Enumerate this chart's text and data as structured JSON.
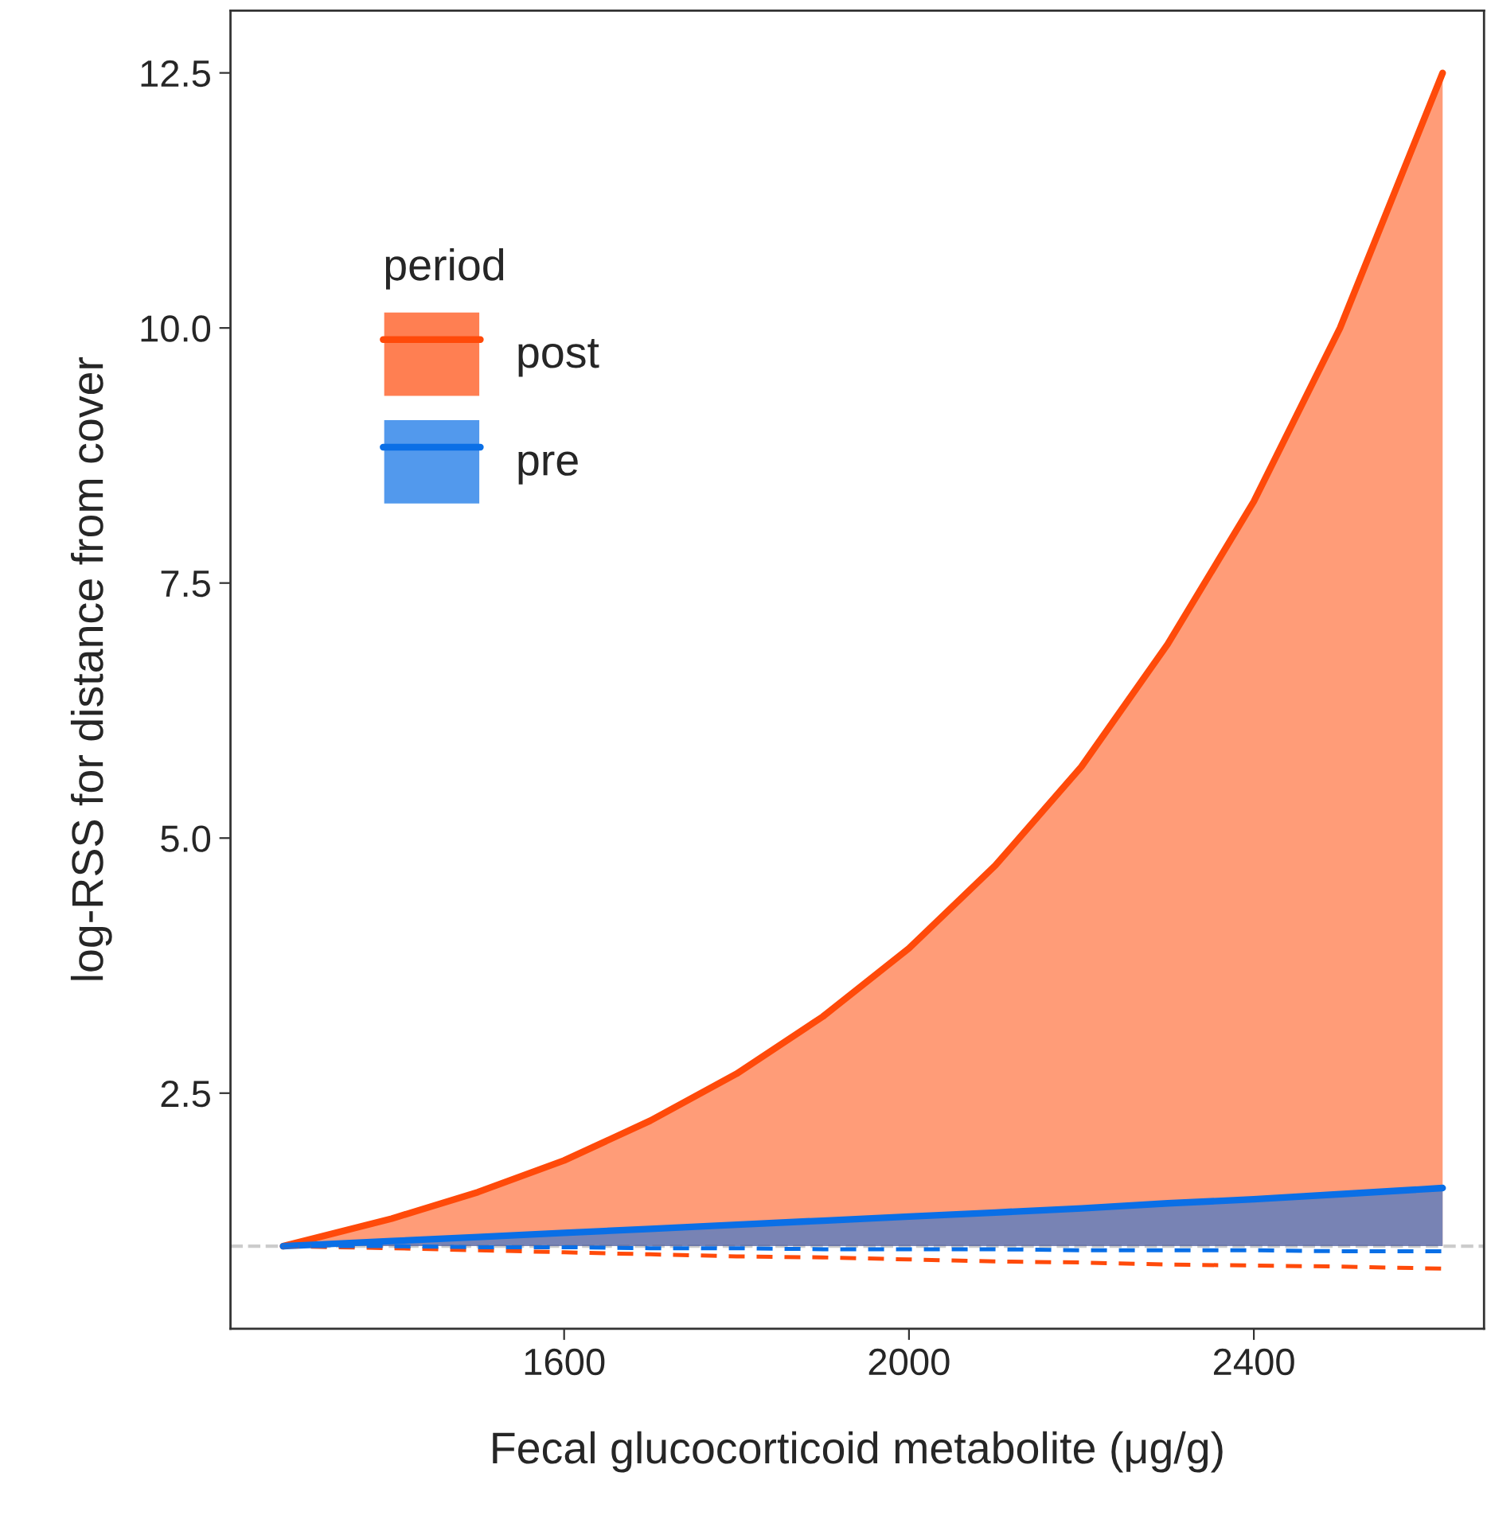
{
  "chart_data": {
    "type": "line",
    "xlabel": "Fecal glucocorticoid metabolite (μg/g)",
    "ylabel": "log-RSS for distance from cover",
    "legend_title": "period",
    "legend": "top left",
    "grid": false,
    "x": [
      1274,
      1400,
      1500,
      1600,
      1700,
      1800,
      1900,
      2000,
      2100,
      2200,
      2300,
      2400,
      2500,
      2619
    ],
    "series": [
      {
        "name": "post",
        "color": "#ff4a0a",
        "values": [
          1.0,
          1.27,
          1.53,
          1.84,
          2.23,
          2.69,
          3.25,
          3.92,
          4.73,
          5.7,
          6.9,
          8.3,
          10.0,
          12.5
        ],
        "lower": [
          1.0,
          1.0,
          1.0,
          1.0,
          1.0,
          1.0,
          1.0,
          1.0,
          1.0,
          1.0,
          1.0,
          1.0,
          1.0,
          1.0
        ],
        "upper": [
          1.0,
          1.27,
          1.53,
          1.84,
          2.23,
          2.69,
          3.25,
          3.92,
          4.73,
          5.7,
          6.9,
          8.3,
          10.0,
          12.5
        ]
      },
      {
        "name": "pre",
        "color": "#0a6fe6",
        "values": [
          1.0,
          1.05,
          1.09,
          1.13,
          1.17,
          1.21,
          1.25,
          1.29,
          1.33,
          1.37,
          1.42,
          1.46,
          1.51,
          1.57
        ],
        "lower": [
          1.0,
          1.0,
          1.0,
          1.0,
          1.0,
          1.0,
          1.0,
          1.0,
          1.0,
          1.0,
          1.0,
          1.0,
          1.0,
          1.0
        ],
        "upper": [
          1.0,
          1.05,
          1.09,
          1.13,
          1.17,
          1.21,
          1.25,
          1.29,
          1.33,
          1.37,
          1.42,
          1.46,
          1.51,
          1.57
        ]
      },
      {
        "color": "#ff4a0a",
        "line_style": "dashed",
        "values": [
          1.0,
          0.98,
          0.96,
          0.94,
          0.92,
          0.9,
          0.89,
          0.87,
          0.85,
          0.84,
          0.82,
          0.81,
          0.8,
          0.78
        ]
      },
      {
        "color": "#0a6fe6",
        "line_style": "dashed",
        "values": [
          1.0,
          1.0,
          0.99,
          0.99,
          0.98,
          0.98,
          0.97,
          0.97,
          0.97,
          0.96,
          0.96,
          0.96,
          0.95,
          0.95
        ]
      }
    ],
    "ref_lines": [
      {
        "axis": "y",
        "value": 1.0,
        "color": "#cccccc",
        "line_style": "dashed"
      }
    ],
    "xlim": [
      1213,
      2667
    ],
    "ylim": [
      0.19,
      13.11
    ],
    "xticks": [
      1600,
      2000,
      2400
    ],
    "yticks": [
      {
        "value": 2.5,
        "label": "2.5"
      },
      {
        "value": 5.0,
        "label": "5.0"
      },
      {
        "value": 7.5,
        "label": "7.5"
      },
      {
        "value": 10.0,
        "label": "10.0"
      },
      {
        "value": 12.5,
        "label": "12.5"
      }
    ]
  }
}
